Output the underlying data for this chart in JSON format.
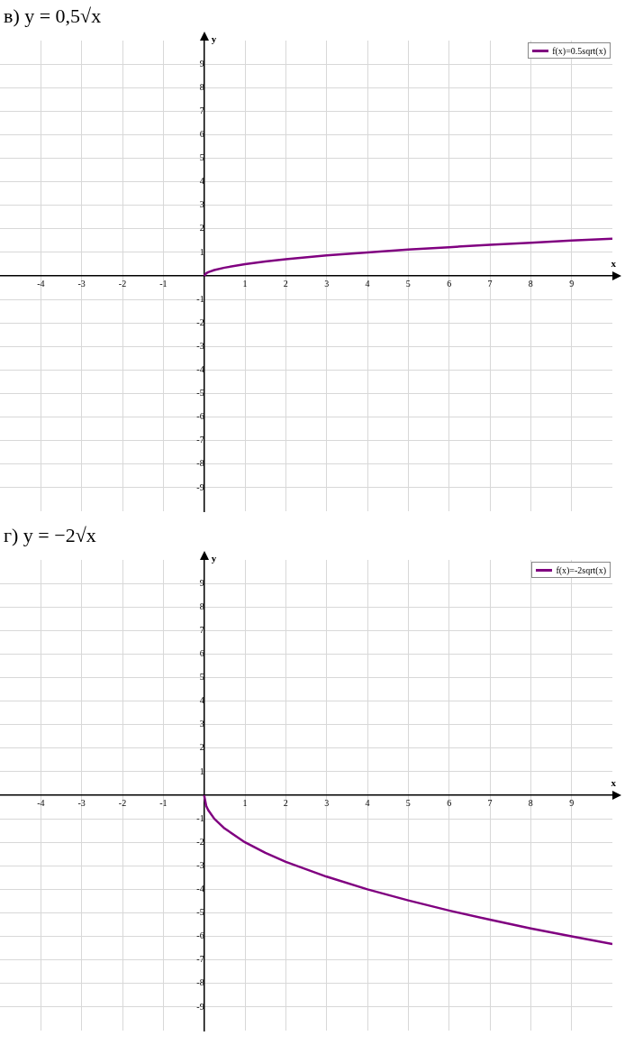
{
  "chart_data": [
    {
      "type": "line",
      "title": "в) y = 0,5√x",
      "xlabel": "x",
      "ylabel": "y",
      "series": [
        {
          "name": "f(x)=0.5sqrt(x)",
          "color": "#800080",
          "x": [
            0,
            0.05,
            0.1,
            0.25,
            0.5,
            1,
            1.5,
            2,
            3,
            4,
            5,
            6,
            7,
            8,
            9,
            10
          ],
          "values": [
            0,
            0.11,
            0.16,
            0.25,
            0.35,
            0.5,
            0.61,
            0.71,
            0.87,
            1,
            1.12,
            1.22,
            1.32,
            1.41,
            1.5,
            1.58
          ]
        }
      ],
      "xlim": [
        -5,
        10
      ],
      "ylim": [
        -10,
        10
      ],
      "xticks": [
        -4,
        -3,
        -2,
        -1,
        1,
        2,
        3,
        4,
        5,
        6,
        7,
        8,
        9
      ],
      "yticks": [
        -9,
        -8,
        -7,
        -6,
        -5,
        -4,
        -3,
        -2,
        -1,
        1,
        2,
        3,
        4,
        5,
        6,
        7,
        8,
        9
      ],
      "grid": true,
      "legend": "top right",
      "marker": "none",
      "line_style": "solid"
    },
    {
      "type": "line",
      "title": "г) y = −2√x",
      "xlabel": "x",
      "ylabel": "y",
      "series": [
        {
          "name": "f(x)=-2sqrt(x)",
          "color": "#800080",
          "x": [
            0,
            0.05,
            0.1,
            0.25,
            0.5,
            1,
            1.5,
            2,
            3,
            4,
            5,
            6,
            7,
            8,
            9,
            10
          ],
          "values": [
            0,
            -0.45,
            -0.63,
            -1,
            -1.41,
            -2,
            -2.45,
            -2.83,
            -3.46,
            -4,
            -4.47,
            -4.9,
            -5.29,
            -5.66,
            -6,
            -6.32
          ]
        }
      ],
      "xlim": [
        -5,
        10
      ],
      "ylim": [
        -10,
        10
      ],
      "xticks": [
        -4,
        -3,
        -2,
        -1,
        1,
        2,
        3,
        4,
        5,
        6,
        7,
        8,
        9
      ],
      "yticks": [
        -9,
        -8,
        -7,
        -6,
        -5,
        -4,
        -3,
        -2,
        -1,
        1,
        2,
        3,
        4,
        5,
        6,
        7,
        8,
        9
      ],
      "grid": true,
      "legend": "top right",
      "marker": "none",
      "line_style": "solid"
    }
  ]
}
